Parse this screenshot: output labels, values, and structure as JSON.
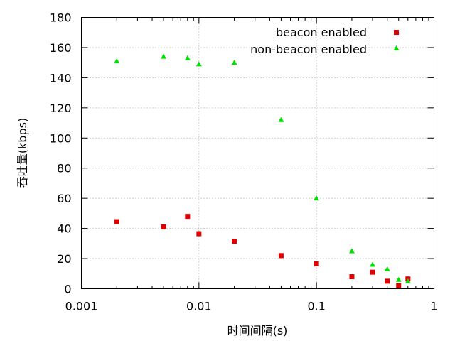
{
  "chart_data": {
    "type": "scatter",
    "xscale": "log",
    "xlim": [
      0.001,
      1
    ],
    "ylim": [
      0,
      180
    ],
    "grid": true,
    "legend_position": "top-right",
    "xlabel": "时间间隔(s)",
    "ylabel": "吞吐量(kbps)",
    "xticks": [
      {
        "value": 0.001,
        "label": "0.001"
      },
      {
        "value": 0.01,
        "label": "0.01"
      },
      {
        "value": 0.1,
        "label": "0.1"
      },
      {
        "value": 1,
        "label": "1"
      }
    ],
    "yticks": [
      0,
      20,
      40,
      60,
      80,
      100,
      120,
      140,
      160,
      180
    ],
    "series": [
      {
        "name": "beacon enabled",
        "marker": "square",
        "color": "#e00000",
        "points": [
          {
            "x": 0.002,
            "y": 44.5
          },
          {
            "x": 0.005,
            "y": 41
          },
          {
            "x": 0.008,
            "y": 48
          },
          {
            "x": 0.01,
            "y": 36.5
          },
          {
            "x": 0.02,
            "y": 31.5
          },
          {
            "x": 0.05,
            "y": 22
          },
          {
            "x": 0.1,
            "y": 16.5
          },
          {
            "x": 0.2,
            "y": 8
          },
          {
            "x": 0.3,
            "y": 11
          },
          {
            "x": 0.4,
            "y": 5
          },
          {
            "x": 0.5,
            "y": 2
          },
          {
            "x": 0.6,
            "y": 6.5
          }
        ]
      },
      {
        "name": "non-beacon enabled",
        "marker": "triangle",
        "color": "#00e000",
        "points": [
          {
            "x": 0.002,
            "y": 151
          },
          {
            "x": 0.005,
            "y": 154
          },
          {
            "x": 0.008,
            "y": 153
          },
          {
            "x": 0.01,
            "y": 149
          },
          {
            "x": 0.02,
            "y": 150
          },
          {
            "x": 0.05,
            "y": 112
          },
          {
            "x": 0.1,
            "y": 60
          },
          {
            "x": 0.2,
            "y": 25
          },
          {
            "x": 0.3,
            "y": 16
          },
          {
            "x": 0.4,
            "y": 13
          },
          {
            "x": 0.5,
            "y": 6
          },
          {
            "x": 0.6,
            "y": 5
          }
        ]
      }
    ]
  }
}
